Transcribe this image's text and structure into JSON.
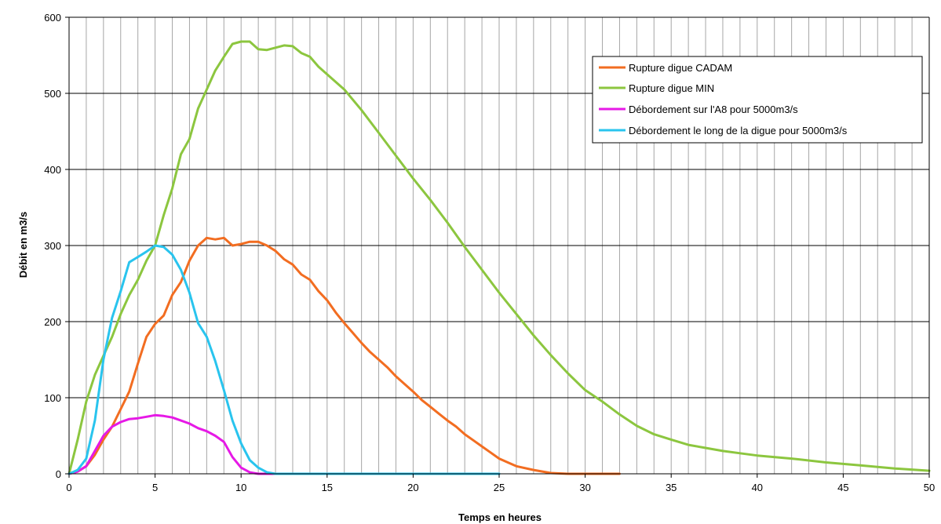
{
  "chart_data": {
    "type": "line",
    "title": "",
    "xlabel": "Temps en heures",
    "ylabel": "Débit en m3/s",
    "xlim": [
      0,
      50
    ],
    "ylim": [
      0,
      600
    ],
    "x_ticks": [
      0,
      5,
      10,
      15,
      20,
      25,
      30,
      35,
      40,
      45,
      50
    ],
    "y_ticks": [
      0,
      100,
      200,
      300,
      400,
      500,
      600
    ],
    "grid": {
      "vertical_every": 1,
      "horizontal_every": 100
    },
    "legend_position": "top-right",
    "series": [
      {
        "name": "Rupture digue CADAM",
        "color": "#f26d21",
        "points": [
          [
            0,
            0
          ],
          [
            0.5,
            3
          ],
          [
            1,
            10
          ],
          [
            1.5,
            25
          ],
          [
            2,
            45
          ],
          [
            2.5,
            62
          ],
          [
            3,
            85
          ],
          [
            3.5,
            108
          ],
          [
            4,
            145
          ],
          [
            4.5,
            180
          ],
          [
            5,
            197
          ],
          [
            5.5,
            208
          ],
          [
            6,
            235
          ],
          [
            6.5,
            252
          ],
          [
            7,
            280
          ],
          [
            7.5,
            300
          ],
          [
            8,
            310
          ],
          [
            8.5,
            308
          ],
          [
            9,
            310
          ],
          [
            9.5,
            300
          ],
          [
            10,
            302
          ],
          [
            10.5,
            305
          ],
          [
            11,
            305
          ],
          [
            11.5,
            300
          ],
          [
            12,
            293
          ],
          [
            12.5,
            282
          ],
          [
            13,
            275
          ],
          [
            13.5,
            262
          ],
          [
            14,
            255
          ],
          [
            14.5,
            240
          ],
          [
            15,
            228
          ],
          [
            15.5,
            212
          ],
          [
            16,
            198
          ],
          [
            16.5,
            185
          ],
          [
            17,
            172
          ],
          [
            17.5,
            160
          ],
          [
            18,
            150
          ],
          [
            18.5,
            140
          ],
          [
            19,
            128
          ],
          [
            19.5,
            118
          ],
          [
            20,
            108
          ],
          [
            20.5,
            97
          ],
          [
            21,
            88
          ],
          [
            21.5,
            79
          ],
          [
            22,
            70
          ],
          [
            22.5,
            62
          ],
          [
            23,
            52
          ],
          [
            23.5,
            44
          ],
          [
            24,
            36
          ],
          [
            24.5,
            28
          ],
          [
            25,
            20
          ],
          [
            25.5,
            15
          ],
          [
            26,
            10
          ],
          [
            27,
            5
          ],
          [
            28,
            1
          ],
          [
            29,
            0
          ],
          [
            30,
            0
          ],
          [
            32,
            0
          ]
        ]
      },
      {
        "name": "Rupture digue MIN",
        "color": "#8cc63f",
        "points": [
          [
            0,
            0
          ],
          [
            0.5,
            45
          ],
          [
            1,
            95
          ],
          [
            1.5,
            130
          ],
          [
            2,
            155
          ],
          [
            2.5,
            180
          ],
          [
            3,
            210
          ],
          [
            3.5,
            235
          ],
          [
            4,
            255
          ],
          [
            4.5,
            280
          ],
          [
            5,
            300
          ],
          [
            5.5,
            340
          ],
          [
            6,
            375
          ],
          [
            6.5,
            420
          ],
          [
            7,
            440
          ],
          [
            7.5,
            480
          ],
          [
            8,
            505
          ],
          [
            8.5,
            530
          ],
          [
            9,
            548
          ],
          [
            9.5,
            565
          ],
          [
            10,
            568
          ],
          [
            10.5,
            568
          ],
          [
            11,
            558
          ],
          [
            11.5,
            557
          ],
          [
            12,
            560
          ],
          [
            12.5,
            563
          ],
          [
            13,
            562
          ],
          [
            13.5,
            553
          ],
          [
            14,
            548
          ],
          [
            14.5,
            535
          ],
          [
            15,
            525
          ],
          [
            16,
            505
          ],
          [
            17,
            478
          ],
          [
            18,
            448
          ],
          [
            19,
            418
          ],
          [
            20,
            388
          ],
          [
            21,
            360
          ],
          [
            22,
            330
          ],
          [
            23,
            298
          ],
          [
            24,
            268
          ],
          [
            25,
            238
          ],
          [
            26,
            210
          ],
          [
            27,
            182
          ],
          [
            28,
            156
          ],
          [
            29,
            132
          ],
          [
            30,
            110
          ],
          [
            31,
            95
          ],
          [
            32,
            78
          ],
          [
            33,
            63
          ],
          [
            34,
            52
          ],
          [
            35,
            45
          ],
          [
            36,
            38
          ],
          [
            37,
            34
          ],
          [
            38,
            30
          ],
          [
            39,
            27
          ],
          [
            40,
            24
          ],
          [
            42,
            20
          ],
          [
            44,
            15
          ],
          [
            46,
            11
          ],
          [
            48,
            7
          ],
          [
            50,
            4
          ]
        ]
      },
      {
        "name": "Débordement sur l'A8 pour 5000m3/s",
        "color": "#e619e6",
        "points": [
          [
            0,
            0
          ],
          [
            0.5,
            3
          ],
          [
            1,
            10
          ],
          [
            1.5,
            30
          ],
          [
            2,
            50
          ],
          [
            2.5,
            62
          ],
          [
            3,
            68
          ],
          [
            3.5,
            72
          ],
          [
            4,
            73
          ],
          [
            4.5,
            75
          ],
          [
            5,
            77
          ],
          [
            5.5,
            76
          ],
          [
            6,
            74
          ],
          [
            6.5,
            70
          ],
          [
            7,
            66
          ],
          [
            7.5,
            60
          ],
          [
            8,
            56
          ],
          [
            8.5,
            50
          ],
          [
            9,
            42
          ],
          [
            9.5,
            22
          ],
          [
            10,
            8
          ],
          [
            10.5,
            2
          ],
          [
            11,
            0
          ],
          [
            12,
            0
          ]
        ]
      },
      {
        "name": "Débordement le long de la digue pour 5000m3/s",
        "color": "#29c4ee",
        "points": [
          [
            0,
            0
          ],
          [
            0.5,
            5
          ],
          [
            1,
            20
          ],
          [
            1.5,
            70
          ],
          [
            2,
            150
          ],
          [
            2.5,
            205
          ],
          [
            3,
            240
          ],
          [
            3.5,
            278
          ],
          [
            4,
            285
          ],
          [
            4.5,
            292
          ],
          [
            5,
            300
          ],
          [
            5.5,
            298
          ],
          [
            6,
            288
          ],
          [
            6.5,
            268
          ],
          [
            7,
            238
          ],
          [
            7.5,
            198
          ],
          [
            8,
            180
          ],
          [
            8.5,
            148
          ],
          [
            9,
            110
          ],
          [
            9.5,
            70
          ],
          [
            10,
            40
          ],
          [
            10.5,
            18
          ],
          [
            11,
            8
          ],
          [
            11.5,
            2
          ],
          [
            12,
            0
          ],
          [
            15,
            0
          ],
          [
            20,
            0
          ],
          [
            25,
            0
          ]
        ]
      }
    ]
  }
}
